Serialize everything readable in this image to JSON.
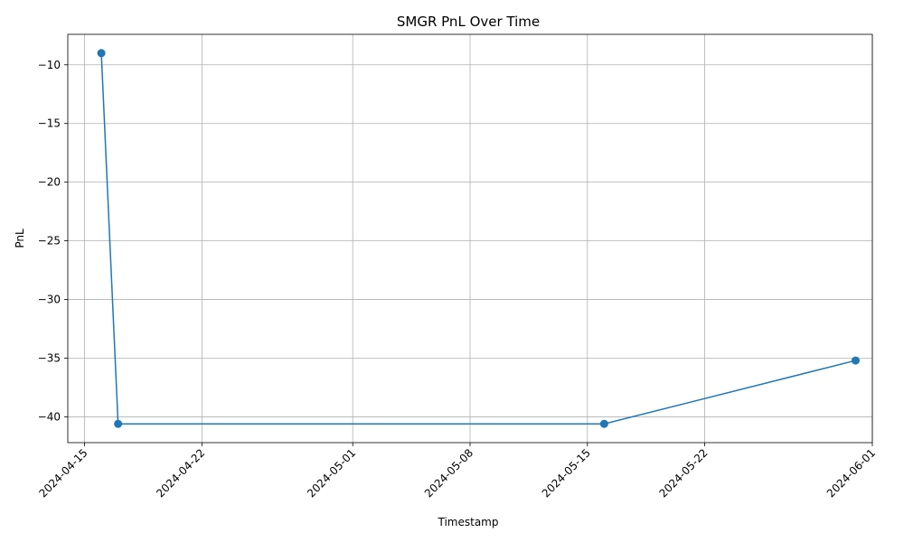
{
  "chart_data": {
    "type": "line",
    "title": "SMGR PnL Over Time",
    "xlabel": "Timestamp",
    "ylabel": "PnL",
    "x_tick_labels": [
      "2024-04-15",
      "2024-04-22",
      "2024-05-01",
      "2024-05-08",
      "2024-05-15",
      "2024-05-22",
      "2024-06-01"
    ],
    "y_tick_labels": [
      "-10",
      "-15",
      "-20",
      "-25",
      "-30",
      "-35",
      "-40"
    ],
    "y_tick_values": [
      -10,
      -15,
      -20,
      -25,
      -30,
      -35,
      -40
    ],
    "xlim": [
      "2024-04-14",
      "2024-06-01"
    ],
    "ylim": [
      -42.2,
      -7.4
    ],
    "grid": true,
    "series": [
      {
        "color": "#1f77b4",
        "marker": "circle",
        "points": [
          {
            "x": "2024-04-16",
            "y": -9.0
          },
          {
            "x": "2024-04-17",
            "y": -40.6
          },
          {
            "x": "2024-05-16",
            "y": -40.6
          },
          {
            "x": "2024-05-31",
            "y": -35.2
          }
        ]
      }
    ]
  }
}
